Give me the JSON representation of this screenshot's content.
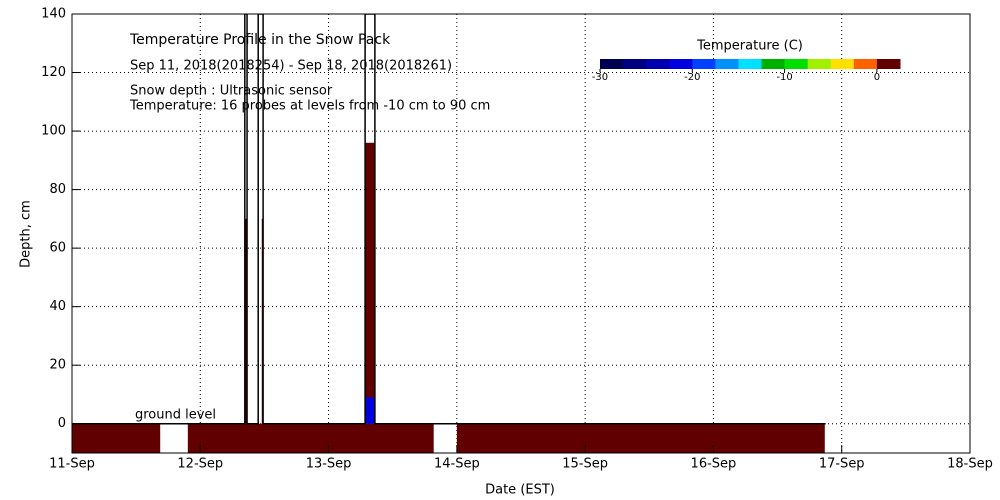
{
  "chart_data": {
    "type": "profile",
    "title": "Temperature Profile in the Snow Pack",
    "subtitle": "Sep 11, 2018(2018254) - Sep 18, 2018(2018261)",
    "notes": [
      "Snow depth : Ultrasonic sensor",
      "Temperature: 16 probes at levels from -10 cm to 90 cm"
    ],
    "annotation": "ground level",
    "xlabel": "Date (EST)",
    "ylabel": "Depth, cm",
    "xlim": [
      "2018-09-11T00:00",
      "2018-09-18T00:00"
    ],
    "xticks": [
      {
        "value": "2018-09-11T00:00",
        "label": "11-Sep"
      },
      {
        "value": "2018-09-12T00:00",
        "label": "12-Sep"
      },
      {
        "value": "2018-09-13T00:00",
        "label": "13-Sep"
      },
      {
        "value": "2018-09-14T00:00",
        "label": "14-Sep"
      },
      {
        "value": "2018-09-15T00:00",
        "label": "15-Sep"
      },
      {
        "value": "2018-09-16T00:00",
        "label": "16-Sep"
      },
      {
        "value": "2018-09-17T00:00",
        "label": "17-Sep"
      },
      {
        "value": "2018-09-18T00:00",
        "label": "18-Sep"
      }
    ],
    "ylim": [
      -10,
      140
    ],
    "yticks": [
      0,
      20,
      40,
      60,
      80,
      100,
      120,
      140
    ],
    "grid": true,
    "snow_depth": {
      "color": "#000000",
      "x": [
        "2018-09-11T00:00",
        "2018-09-12T08:20",
        "2018-09-12T08:20",
        "2018-09-12T08:45",
        "2018-09-12T08:45",
        "2018-09-12T10:50",
        "2018-09-12T10:50",
        "2018-09-12T11:45",
        "2018-09-12T11:45",
        "2018-09-13T06:50",
        "2018-09-13T06:50",
        "2018-09-13T08:40",
        "2018-09-13T08:40",
        "2018-09-16T21:00"
      ],
      "values": [
        0,
        0,
        140,
        140,
        0,
        0,
        140,
        140,
        0,
        0,
        140,
        140,
        0,
        0
      ]
    },
    "temperature_cells": {
      "start": [
        "2018-09-11T00:00",
        "2018-09-11T21:40",
        "2018-09-14T00:00",
        "2018-09-12T08:25",
        "2018-09-12T11:30",
        "2018-09-13T06:55",
        "2018-09-13T07:00"
      ],
      "end": [
        "2018-09-11T16:30",
        "2018-09-13T19:40",
        "2018-09-16T20:50",
        "2018-09-12T08:40",
        "2018-09-12T11:40",
        "2018-09-13T08:35",
        "2018-09-13T08:30"
      ],
      "bottom": [
        -10,
        -10,
        -10,
        0,
        0,
        0,
        0
      ],
      "top": [
        0,
        0,
        0,
        70,
        70,
        96,
        9
      ],
      "values": [
        2,
        2,
        2,
        2,
        2,
        2,
        -22
      ]
    },
    "colorbar": {
      "title": "Temperature (C)",
      "lim": [
        -30,
        2.5
      ],
      "ticks": [
        -30,
        -20,
        -10,
        0
      ],
      "colors": [
        "#000050",
        "#000080",
        "#0000b0",
        "#0000e0",
        "#0040ff",
        "#0090ff",
        "#00e0ff",
        "#00b000",
        "#00e000",
        "#a0f000",
        "#ffe000",
        "#ff6000",
        "#600000"
      ]
    }
  }
}
